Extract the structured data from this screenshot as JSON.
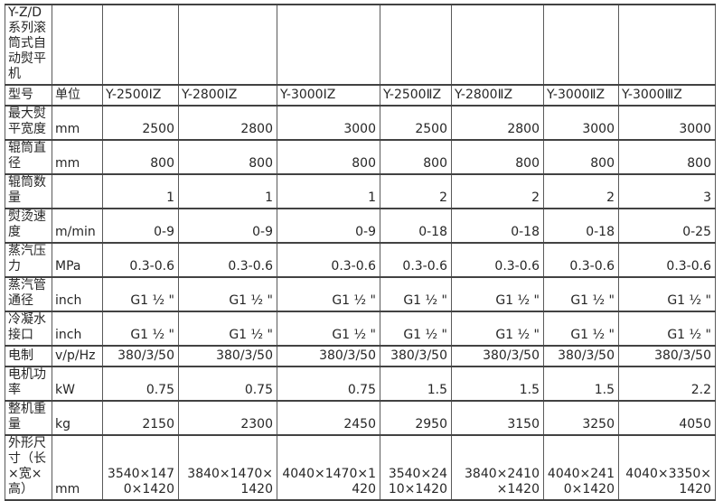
{
  "colors": {
    "page_background": "#ffffff",
    "table_background": "#ffffff",
    "text": "#262626",
    "border_horizontal": "#424242",
    "border_vertical": "#5a5a5a"
  },
  "table": {
    "title": "Y-Z/D系列滚筒式自动熨平机",
    "header": {
      "row_label": "型号",
      "unit_label": "单位",
      "models": [
        "Y-2500ⅠZ",
        "Y-2800ⅠZ",
        "Y-3000ⅠZ",
        "Y-2500ⅡZ",
        "Y-2800ⅡZ",
        "Y-3000ⅡZ",
        "Y-3000ⅢZ"
      ]
    },
    "rows": [
      {
        "label": "最大熨平宽度",
        "unit": "mm",
        "values": [
          "2500",
          "2800",
          "3000",
          "2500",
          "2800",
          "3000",
          "3000"
        ]
      },
      {
        "label": "辊筒直径",
        "unit": "mm",
        "values": [
          "800",
          "800",
          "800",
          "800",
          "800",
          "800",
          "800"
        ]
      },
      {
        "label": "辊筒数量",
        "unit": "",
        "values": [
          "1",
          "1",
          "1",
          "2",
          "2",
          "2",
          "3"
        ]
      },
      {
        "label": "熨烫速度",
        "unit": "m/min",
        "values": [
          "0-9",
          "0-9",
          "0-9",
          "0-18",
          "0-18",
          "0-18",
          "0-25"
        ]
      },
      {
        "label": "蒸汽压力",
        "unit": "MPa",
        "values": [
          "0.3-0.6",
          "0.3-0.6",
          "0.3-0.6",
          "0.3-0.6",
          "0.3-0.6",
          "0.3-0.6",
          "0.3-0.6"
        ]
      },
      {
        "label": "蒸汽管通径",
        "unit": "inch",
        "values": [
          "G1 ½ \"",
          "G1 ½ \"",
          "G1 ½ \"",
          "G1 ½ \"",
          "G1 ½ \"",
          "G1 ½ \"",
          "G1 ½ \""
        ]
      },
      {
        "label": "冷凝水接口",
        "unit": "inch",
        "values": [
          "G1 ½ \"",
          "G1 ½ \"",
          "G1 ½ \"",
          "G1 ½ \"",
          "G1 ½ \"",
          "G1 ½ \"",
          "G1 ½ \""
        ]
      },
      {
        "label": "电制",
        "unit": "v/p/Hz",
        "values": [
          "380/3/50",
          "380/3/50",
          "380/3/50",
          "380/3/50",
          "380/3/50",
          "380/3/50",
          "380/3/50"
        ]
      },
      {
        "label": "电机功率",
        "unit": "kW",
        "values": [
          "0.75",
          "0.75",
          "0.75",
          "1.5",
          "1.5",
          "1.5",
          "2.2"
        ]
      },
      {
        "label": "整机重量",
        "unit": "kg",
        "values": [
          "2150",
          "2300",
          "2450",
          "2950",
          "3150",
          "3250",
          "4050"
        ]
      },
      {
        "label": "外形尺寸（长×宽×高）",
        "unit": "mm",
        "values": [
          "3540×1470×1420",
          "3840×1470×1420",
          "4040×1470×1420",
          "3540×2410×1420",
          "3840×2410×1420",
          "4040×2410×1420",
          "4040×3350×1420"
        ]
      }
    ]
  }
}
